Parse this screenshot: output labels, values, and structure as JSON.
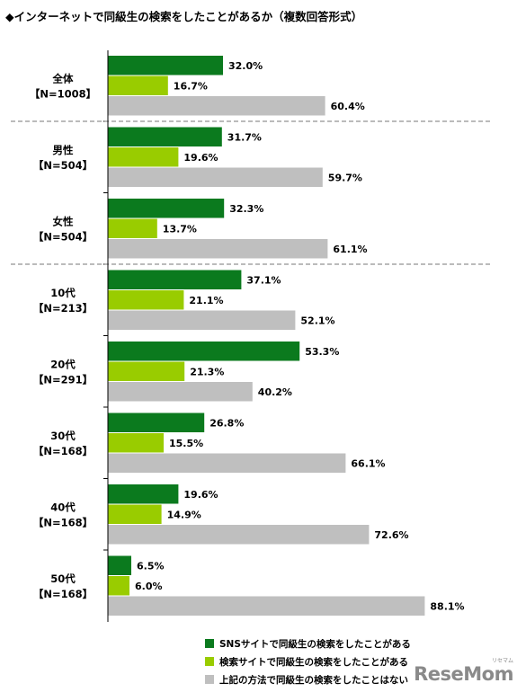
{
  "title": "◆インターネットで同級生の検索をしたことがあるか（複数回答形式）",
  "chart_data": {
    "type": "bar",
    "orientation": "horizontal",
    "title": "◆インターネットで同級生の検索をしたことがあるか（複数回答形式）",
    "unit": "%",
    "xlim": [
      0,
      100
    ],
    "grid": false,
    "legend_position": "bottom",
    "groups": [
      {
        "label": "全体",
        "n": "【N=1008】",
        "values": [
          32.0,
          16.7,
          60.4
        ]
      },
      {
        "label": "男性",
        "n": "【N=504】",
        "values": [
          31.7,
          19.6,
          59.7
        ]
      },
      {
        "label": "女性",
        "n": "【N=504】",
        "values": [
          32.3,
          13.7,
          61.1
        ]
      },
      {
        "label": "10代",
        "n": "【N=213】",
        "values": [
          37.1,
          21.1,
          52.1
        ]
      },
      {
        "label": "20代",
        "n": "【N=291】",
        "values": [
          53.3,
          21.3,
          40.2
        ]
      },
      {
        "label": "30代",
        "n": "【N=168】",
        "values": [
          26.8,
          15.5,
          66.1
        ]
      },
      {
        "label": "40代",
        "n": "【N=168】",
        "values": [
          19.6,
          14.9,
          72.6
        ]
      },
      {
        "label": "50代",
        "n": "【N=168】",
        "values": [
          6.5,
          6.0,
          88.1
        ]
      }
    ],
    "series": [
      {
        "name": "SNSサイトで同級生の検索をしたことがある",
        "color": "#0b7a1e"
      },
      {
        "name": "検索サイトで同級生の検索をしたことがある",
        "color": "#99cc00"
      },
      {
        "name": "上記の方法で同級生の検索をしたことはない",
        "color": "#bfbfbf"
      }
    ],
    "separators_after_groups": [
      0,
      2
    ]
  },
  "logo": {
    "text": "ReseMom",
    "small": "リセマム"
  }
}
